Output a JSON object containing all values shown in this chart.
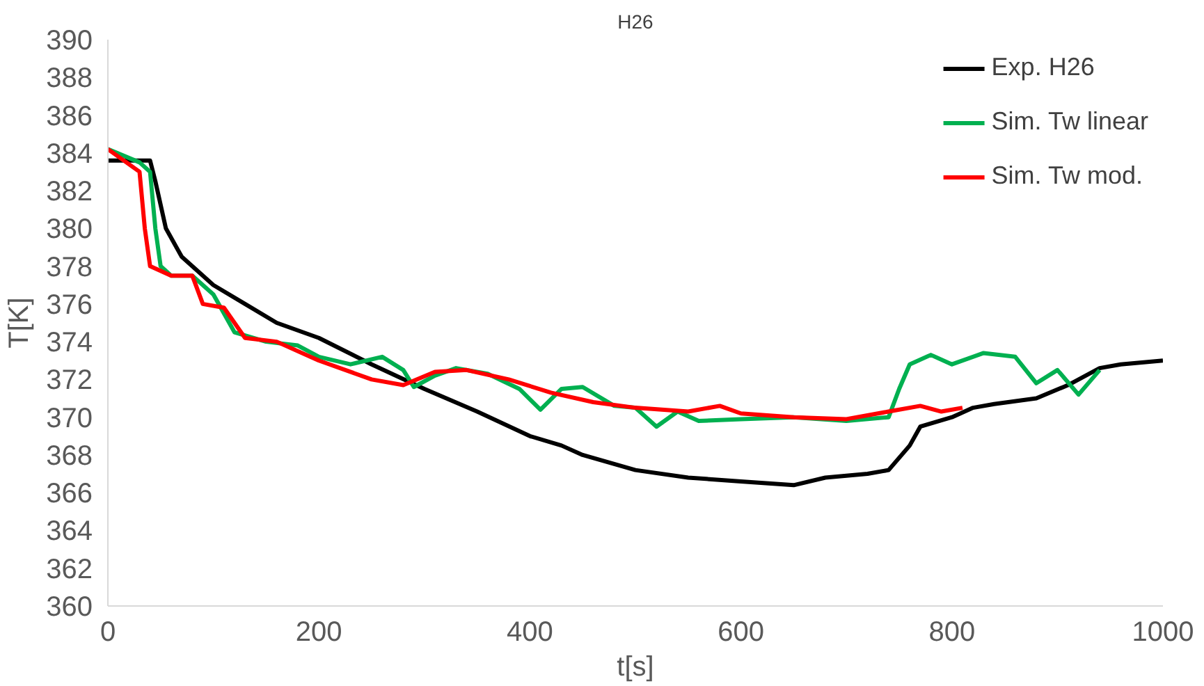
{
  "chart_data": {
    "type": "line",
    "title": "H26",
    "xlabel": "t[s]",
    "ylabel": "T[K]",
    "xlim": [
      0,
      1000
    ],
    "xticks": [
      0,
      200,
      400,
      600,
      800,
      1000
    ],
    "ylim": [
      360,
      390
    ],
    "yticks": [
      360,
      362,
      364,
      366,
      368,
      370,
      372,
      374,
      376,
      378,
      380,
      382,
      384,
      386,
      388,
      390
    ],
    "grid": false,
    "legend": "top right",
    "marker": "none",
    "line_style": "solid",
    "series": [
      {
        "name": "Exp. H26",
        "color": "#000000",
        "x": [
          0,
          40,
          45,
          55,
          70,
          100,
          130,
          160,
          200,
          250,
          300,
          350,
          400,
          430,
          450,
          500,
          550,
          600,
          650,
          680,
          720,
          740,
          760,
          770,
          800,
          820,
          840,
          880,
          910,
          940,
          960,
          1000
        ],
        "values": [
          383.6,
          383.6,
          382.5,
          380,
          378.5,
          377,
          376,
          375,
          374.2,
          372.8,
          371.5,
          370.3,
          369,
          368.5,
          368,
          367.2,
          366.8,
          366.6,
          366.4,
          366.8,
          367,
          367.2,
          368.5,
          369.5,
          370,
          370.5,
          370.7,
          371,
          371.7,
          372.6,
          372.8,
          373
        ]
      },
      {
        "name": "Sim. Tw linear",
        "color": "#00b050",
        "x": [
          0,
          30,
          40,
          45,
          50,
          60,
          80,
          100,
          120,
          150,
          180,
          200,
          230,
          260,
          280,
          290,
          310,
          330,
          360,
          390,
          410,
          430,
          450,
          480,
          500,
          520,
          540,
          560,
          600,
          650,
          700,
          740,
          750,
          760,
          780,
          800,
          830,
          860,
          880,
          900,
          920,
          940
        ],
        "values": [
          384.2,
          383.5,
          383,
          380,
          378,
          377.5,
          377.5,
          376.5,
          374.5,
          374,
          373.8,
          373.2,
          372.8,
          373.2,
          372.5,
          371.6,
          372.2,
          372.6,
          372.3,
          371.5,
          370.4,
          371.5,
          371.6,
          370.6,
          370.5,
          369.5,
          370.3,
          369.8,
          369.9,
          370,
          369.8,
          370,
          371.5,
          372.8,
          373.3,
          372.8,
          373.4,
          373.2,
          371.8,
          372.5,
          371.2,
          372.5
        ]
      },
      {
        "name": "Sim. Tw mod.",
        "color": "#ff0000",
        "x": [
          0,
          30,
          35,
          40,
          60,
          80,
          90,
          110,
          130,
          160,
          200,
          250,
          280,
          310,
          340,
          380,
          420,
          460,
          500,
          550,
          580,
          600,
          650,
          700,
          740,
          770,
          790,
          810
        ],
        "values": [
          384.2,
          383,
          380,
          378,
          377.5,
          377.5,
          376,
          375.8,
          374.2,
          374,
          373,
          372,
          371.7,
          372.4,
          372.5,
          372,
          371.3,
          370.8,
          370.5,
          370.3,
          370.6,
          370.2,
          370,
          369.9,
          370.3,
          370.6,
          370.3,
          370.5
        ]
      }
    ]
  }
}
